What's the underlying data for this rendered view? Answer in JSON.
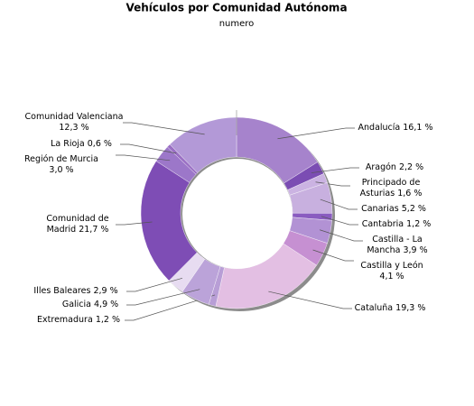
{
  "chart_data": {
    "type": "donut",
    "title": "Vehículos por Comunidad Autónoma",
    "subtitle": "numero",
    "categories": [
      "Andalucía",
      "Aragón",
      "Principado de Asturias",
      "Canarias",
      "Cantabria",
      "Castilla - La Mancha",
      "Castilla y León",
      "Cataluña",
      "Extremadura",
      "Galicia",
      "Illes Baleares",
      "Comunidad de Madrid",
      "Región de Murcia",
      "La Rioja",
      "Comunidad Valenciana"
    ],
    "values": [
      16.1,
      2.2,
      1.6,
      5.2,
      1.2,
      3.9,
      4.1,
      19.3,
      1.2,
      4.9,
      2.9,
      21.7,
      3.0,
      0.6,
      12.3
    ],
    "value_labels": [
      "16,1 %",
      "2,2 %",
      "1,6 %",
      "5,2 %",
      "1,2 %",
      "3,9 %",
      "4,1 %",
      "19,3 %",
      "1,2 %",
      "4,9 %",
      "2,9 %",
      "21,7 %",
      "3,0 %",
      "0,6 %",
      "12,3 %"
    ],
    "colors": [
      "#a683cc",
      "#7b4db3",
      "#cbb3e2",
      "#c8b0df",
      "#8a5cc0",
      "#b292d4",
      "#c690d2",
      "#e3bfe3",
      "#b89ed6",
      "#bba3d9",
      "#e7dcf1",
      "#7e4db5",
      "#9c77c9",
      "#9a6fc4",
      "#b399d7"
    ]
  }
}
